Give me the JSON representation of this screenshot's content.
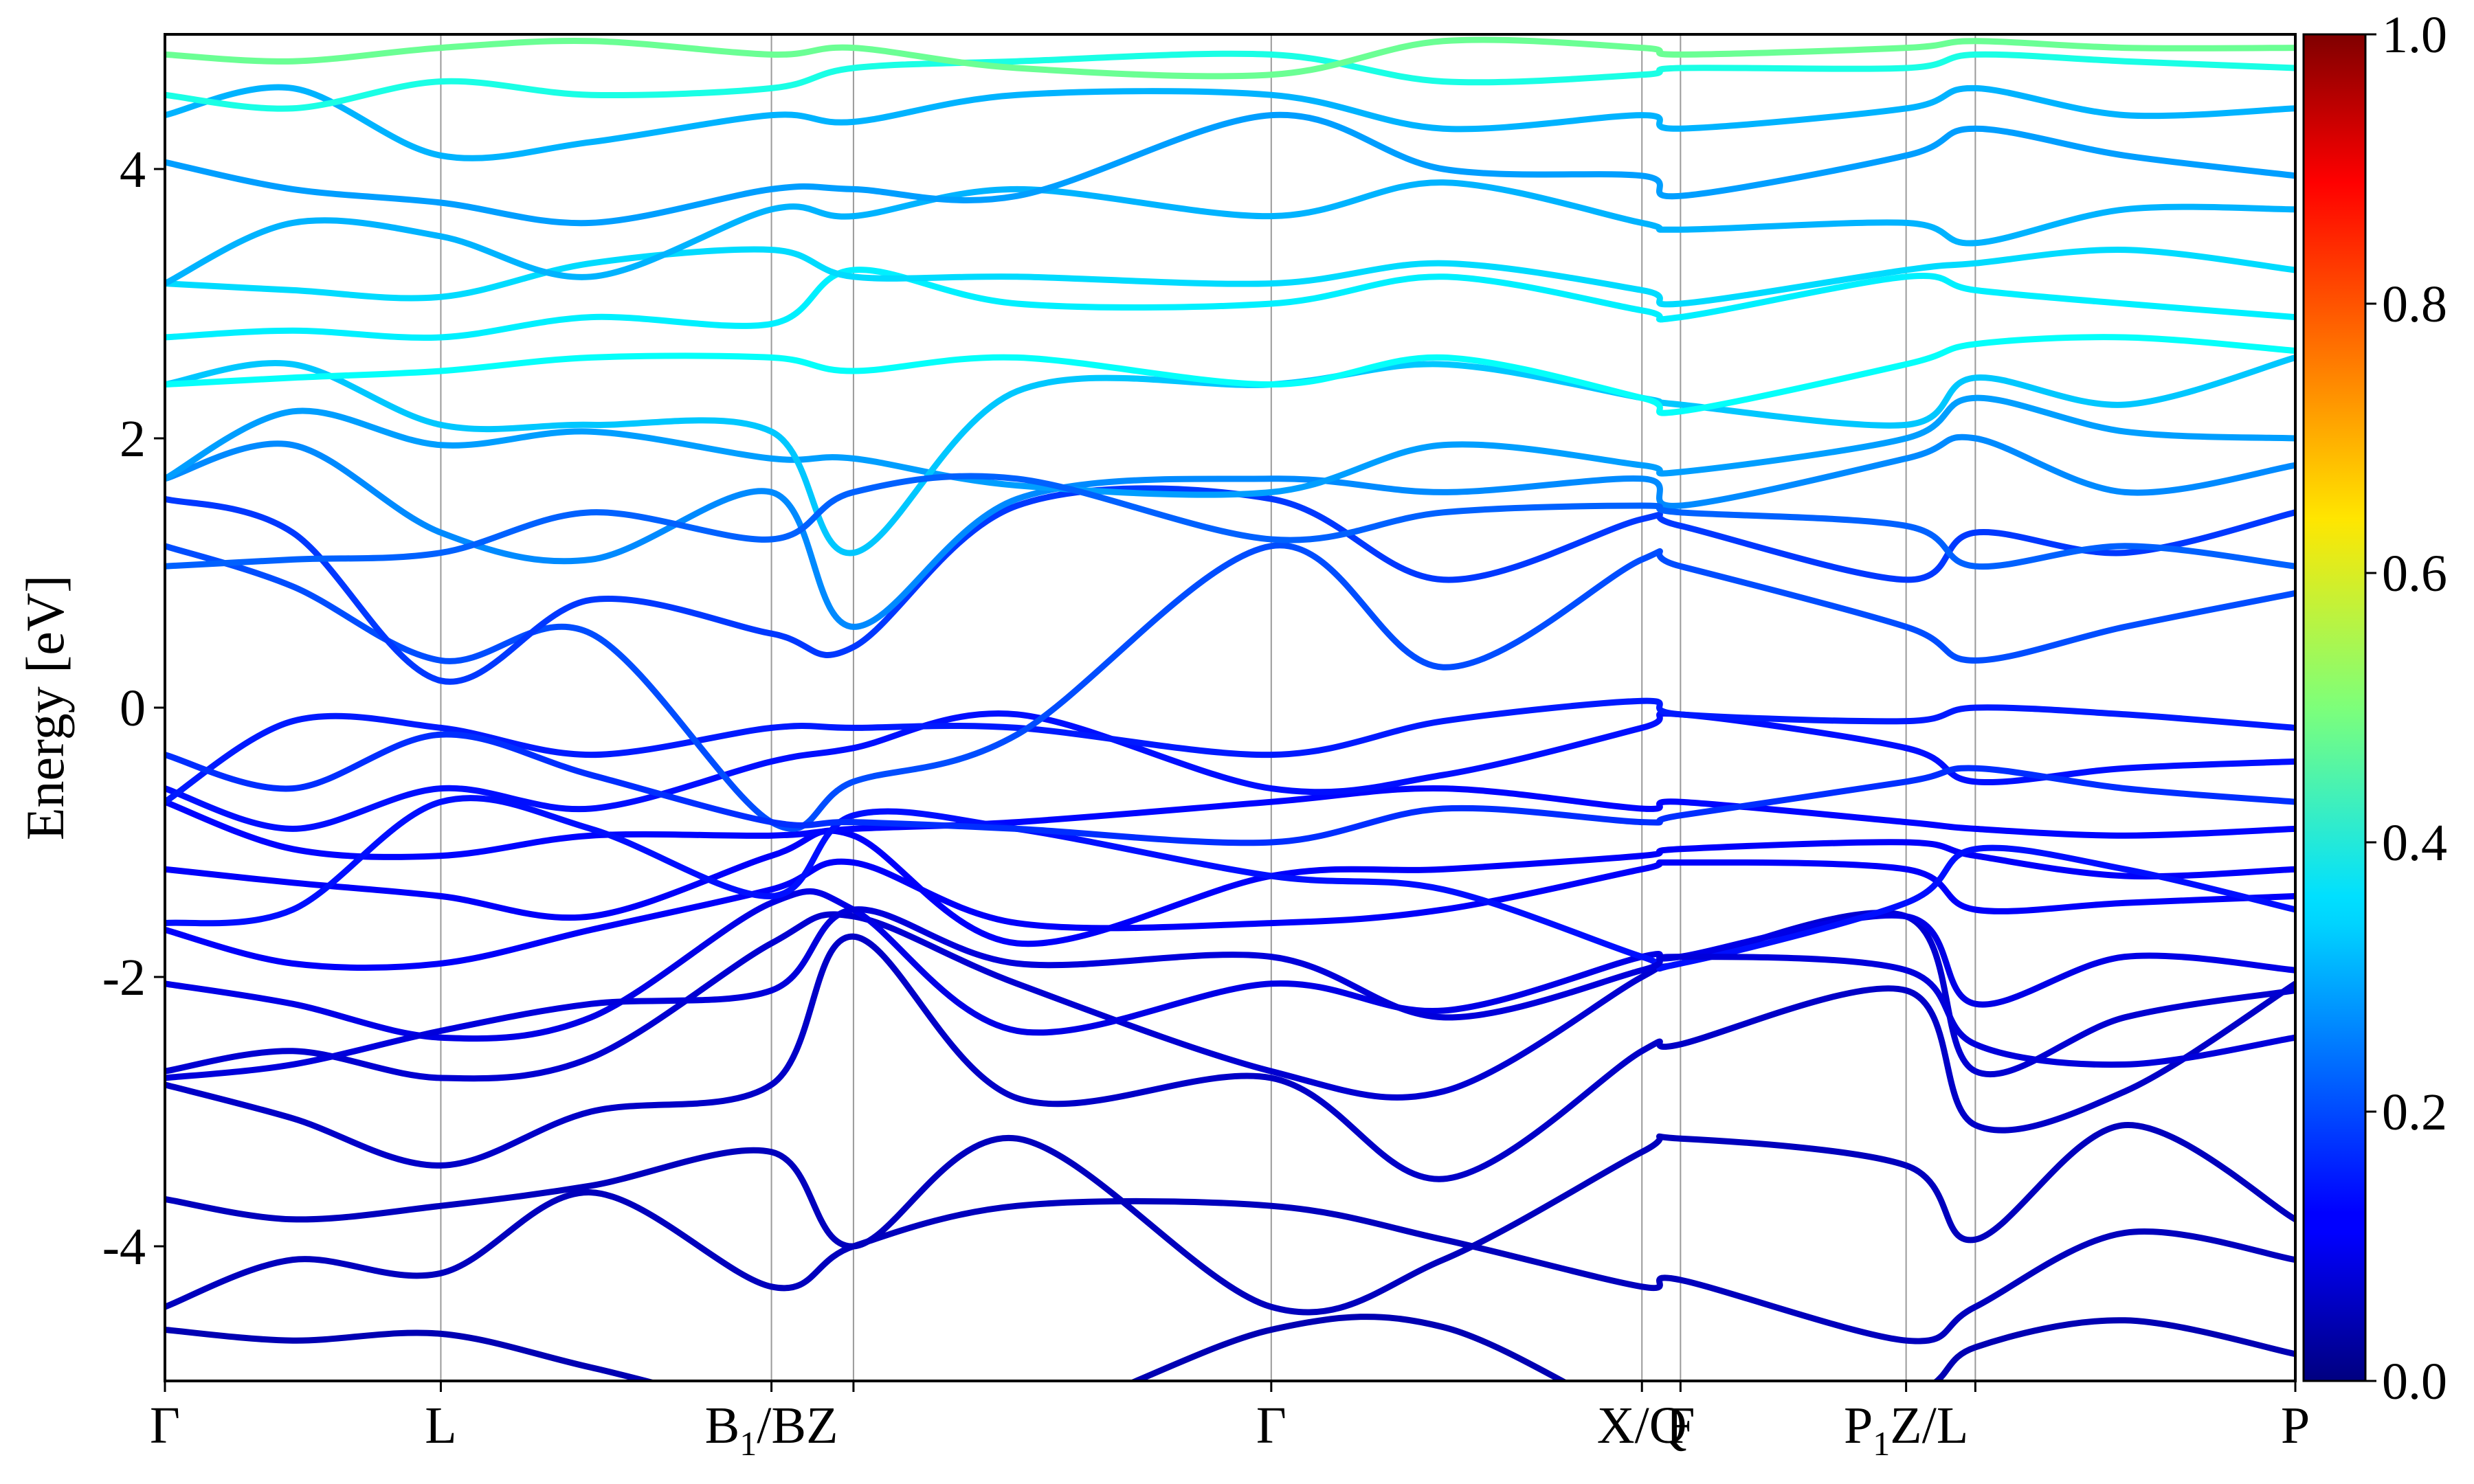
{
  "chart_data": {
    "type": "line",
    "title": "",
    "xlabel": "",
    "ylabel": "Energy [eV]",
    "ylim": [
      -5,
      5
    ],
    "yticks": [
      -4,
      -2,
      0,
      2,
      4
    ],
    "ytick_labels": [
      "-4",
      "-2",
      "0",
      "2",
      "4"
    ],
    "x_range": [
      0,
      1
    ],
    "k_path": [
      {
        "label": "Γ",
        "position": 0.0
      },
      {
        "label": "L",
        "position": 0.1295
      },
      {
        "label": "B1/BZ",
        "main": "B",
        "sub": "1",
        "rest": "/BZ",
        "position": 0.2847
      },
      {
        "label": "",
        "position": 0.3232
      },
      {
        "label": "Γ",
        "position": 0.5193
      },
      {
        "label": "X/Q",
        "main": "X/Q",
        "position": 0.6933
      },
      {
        "label": "F",
        "position": 0.7114
      },
      {
        "label": "P1Z/L",
        "main": "P",
        "sub": "1",
        "rest": "Z/L",
        "position": 0.8173
      },
      {
        "label": "",
        "position": 0.8498
      },
      {
        "label": "P",
        "position": 1.0
      }
    ],
    "colorbar": {
      "min": 0.0,
      "max": 1.0,
      "ticks": [
        0.0,
        0.2,
        0.4,
        0.6,
        0.8,
        1.0
      ],
      "tick_labels": [
        "0.0",
        "0.2",
        "0.4",
        "0.6",
        "0.8",
        "1.0"
      ],
      "colormap": "jet"
    },
    "series": [
      {
        "weight": 0.05,
        "x": [
          0,
          0.06,
          0.1295,
          0.2,
          0.2847,
          0.3232,
          0.4,
          0.5193,
          0.6,
          0.6933,
          0.7114,
          0.8173,
          0.8498,
          0.92,
          1.0
        ],
        "y": [
          -4.62,
          -4.7,
          -4.65,
          -4.9,
          -5.2,
          -5.05,
          -5.3,
          -4.62,
          -4.6,
          -5.3,
          -5.2,
          -5.1,
          -4.75,
          -4.55,
          -4.8
        ]
      },
      {
        "weight": 0.06,
        "x": [
          0,
          0.06,
          0.1295,
          0.2,
          0.2847,
          0.3232,
          0.4,
          0.5193,
          0.6,
          0.6933,
          0.7114,
          0.8173,
          0.8498,
          0.92,
          1.0
        ],
        "y": [
          -4.45,
          -4.1,
          -4.2,
          -3.6,
          -4.3,
          -4.0,
          -3.7,
          -3.7,
          -3.95,
          -4.3,
          -4.25,
          -4.7,
          -4.45,
          -3.9,
          -4.1
        ]
      },
      {
        "weight": 0.06,
        "x": [
          0,
          0.06,
          0.1295,
          0.2,
          0.2847,
          0.3232,
          0.4,
          0.5193,
          0.6,
          0.6933,
          0.7114,
          0.8173,
          0.8498,
          0.92,
          1.0
        ],
        "y": [
          -3.65,
          -3.8,
          -3.7,
          -3.55,
          -3.3,
          -4.0,
          -3.2,
          -4.45,
          -4.1,
          -3.3,
          -3.2,
          -3.4,
          -3.95,
          -3.1,
          -3.8
        ]
      },
      {
        "weight": 0.07,
        "x": [
          0,
          0.06,
          0.1295,
          0.2,
          0.2847,
          0.3232,
          0.4,
          0.5193,
          0.6,
          0.6933,
          0.7114,
          0.8173,
          0.8498,
          0.92,
          1.0
        ],
        "y": [
          -2.8,
          -3.05,
          -3.4,
          -3.0,
          -2.8,
          -1.7,
          -2.9,
          -2.75,
          -3.5,
          -2.55,
          -2.5,
          -2.1,
          -3.1,
          -2.85,
          -2.05
        ]
      },
      {
        "weight": 0.08,
        "x": [
          0,
          0.06,
          0.1295,
          0.2,
          0.2847,
          0.3232,
          0.4,
          0.5193,
          0.6,
          0.6933,
          0.7114,
          0.8173,
          0.8498,
          0.92,
          1.0
        ],
        "y": [
          -2.7,
          -2.55,
          -2.75,
          -2.6,
          -1.75,
          -1.55,
          -2.05,
          -2.7,
          -2.85,
          -2.0,
          -1.9,
          -1.55,
          -2.7,
          -2.3,
          -2.1
        ]
      },
      {
        "weight": 0.1,
        "x": [
          0,
          0.06,
          0.1295,
          0.2,
          0.2847,
          0.3232,
          0.4,
          0.5193,
          0.6,
          0.6933,
          0.7114,
          0.8173,
          0.8498,
          0.92,
          1.0
        ],
        "y": [
          -2.05,
          -2.2,
          -2.45,
          -2.3,
          -1.45,
          -1.5,
          -2.4,
          -2.05,
          -2.25,
          -1.85,
          -1.85,
          -1.55,
          -2.2,
          -1.85,
          -1.95
        ]
      },
      {
        "weight": 0.12,
        "x": [
          0,
          0.06,
          0.1295,
          0.2,
          0.2847,
          0.3232,
          0.4,
          0.5193,
          0.6,
          0.6933,
          0.7114,
          0.8173,
          0.8498,
          0.92,
          1.0
        ],
        "y": [
          -1.65,
          -1.9,
          -1.9,
          -1.65,
          -1.35,
          -1.15,
          -1.6,
          -1.6,
          -1.5,
          -1.2,
          -1.15,
          -1.2,
          -1.5,
          -1.45,
          -1.4
        ]
      },
      {
        "weight": 0.12,
        "x": [
          0,
          0.06,
          0.1295,
          0.2,
          0.2847,
          0.3232,
          0.4,
          0.5193,
          0.6,
          0.6933,
          0.7114,
          0.8173,
          0.8498,
          0.92,
          1.0
        ],
        "y": [
          -1.2,
          -1.3,
          -1.4,
          -1.55,
          -1.1,
          -0.95,
          -1.75,
          -1.25,
          -1.2,
          -1.1,
          -1.05,
          -1.0,
          -1.1,
          -1.25,
          -1.2
        ]
      },
      {
        "weight": 0.13,
        "x": [
          0,
          0.06,
          0.1295,
          0.2,
          0.2847,
          0.3232,
          0.4,
          0.5193,
          0.6,
          0.6933,
          0.7114,
          0.8173,
          0.8498,
          0.92,
          1.0
        ],
        "y": [
          -0.7,
          -1.05,
          -1.1,
          -0.95,
          -0.95,
          -0.9,
          -0.85,
          -0.7,
          -0.6,
          -0.75,
          -0.7,
          -0.85,
          -0.9,
          -0.95,
          -0.9
        ]
      },
      {
        "weight": 0.14,
        "x": [
          0,
          0.06,
          0.1295,
          0.2,
          0.2847,
          0.3232,
          0.4,
          0.5193,
          0.6,
          0.6933,
          0.7114,
          0.8173,
          0.8498,
          0.92,
          1.0
        ],
        "y": [
          -0.6,
          -0.9,
          -0.6,
          -0.75,
          -0.4,
          -0.3,
          -0.05,
          -0.6,
          -0.5,
          -0.15,
          -0.05,
          -0.3,
          -0.55,
          -0.45,
          -0.4
        ]
      },
      {
        "weight": 0.15,
        "x": [
          0,
          0.06,
          0.1295,
          0.2,
          0.2847,
          0.3232,
          0.4,
          0.5193,
          0.6,
          0.6933,
          0.7114,
          0.8173,
          0.8498,
          0.92,
          1.0
        ],
        "y": [
          -0.7,
          -0.1,
          -0.15,
          -0.35,
          -0.15,
          -0.15,
          -0.15,
          -0.35,
          -0.1,
          0.05,
          -0.05,
          -0.1,
          0.0,
          -0.05,
          -0.15
        ]
      },
      {
        "weight": 0.2,
        "x": [
          0,
          0.06,
          0.1295,
          0.2,
          0.2847,
          0.3232,
          0.4,
          0.5193,
          0.6,
          0.6933,
          0.7114,
          0.8173,
          0.8498,
          0.92,
          1.0
        ],
        "y": [
          1.2,
          0.9,
          0.35,
          0.55,
          -0.85,
          -0.55,
          -0.2,
          1.2,
          0.3,
          1.1,
          1.05,
          0.6,
          0.35,
          0.6,
          0.85
        ]
      },
      {
        "weight": 0.18,
        "x": [
          0,
          0.06,
          0.1295,
          0.2,
          0.2847,
          0.3232,
          0.4,
          0.5193,
          0.6,
          0.6933,
          0.7114,
          0.8173,
          0.8498,
          0.92,
          1.0
        ],
        "y": [
          1.55,
          1.3,
          0.2,
          0.8,
          0.55,
          0.45,
          1.5,
          1.55,
          0.95,
          1.4,
          1.35,
          0.95,
          1.3,
          1.15,
          1.45
        ]
      },
      {
        "weight": 0.26,
        "x": [
          0,
          0.06,
          0.1295,
          0.2,
          0.2847,
          0.3232,
          0.4,
          0.5193,
          0.6,
          0.6933,
          0.7114,
          0.8173,
          0.8498,
          0.92,
          1.0
        ],
        "y": [
          1.7,
          1.95,
          1.3,
          1.1,
          1.6,
          0.6,
          1.55,
          1.7,
          1.6,
          1.7,
          1.5,
          1.85,
          2.0,
          1.6,
          1.8
        ]
      },
      {
        "weight": 0.28,
        "x": [
          0,
          0.06,
          0.1295,
          0.2,
          0.2847,
          0.3232,
          0.4,
          0.5193,
          0.6,
          0.6933,
          0.7114,
          0.8173,
          0.8498,
          0.92,
          1.0
        ],
        "y": [
          1.7,
          2.2,
          1.95,
          2.05,
          1.85,
          1.85,
          1.65,
          1.6,
          1.95,
          1.8,
          1.75,
          2.0,
          2.3,
          2.05,
          2.0
        ]
      },
      {
        "weight": 0.32,
        "x": [
          0,
          0.06,
          0.1295,
          0.2,
          0.2847,
          0.3232,
          0.4,
          0.5193,
          0.6,
          0.6933,
          0.7114,
          0.8173,
          0.8498,
          0.92,
          1.0
        ],
        "y": [
          2.4,
          2.55,
          2.1,
          2.1,
          2.05,
          1.15,
          2.35,
          2.4,
          2.55,
          2.3,
          2.25,
          2.1,
          2.45,
          2.25,
          2.6
        ]
      },
      {
        "weight": 0.38,
        "x": [
          0,
          0.06,
          0.1295,
          0.2,
          0.2847,
          0.3232,
          0.4,
          0.5193,
          0.6,
          0.6933,
          0.7114,
          0.8173,
          0.8498,
          0.92,
          1.0
        ],
        "y": [
          2.4,
          2.45,
          2.5,
          2.6,
          2.6,
          2.5,
          2.6,
          2.4,
          2.6,
          2.3,
          2.2,
          2.55,
          2.7,
          2.75,
          2.65
        ]
      },
      {
        "weight": 0.36,
        "x": [
          0,
          0.06,
          0.1295,
          0.2,
          0.2847,
          0.3232,
          0.4,
          0.5193,
          0.6,
          0.6933,
          0.7114,
          0.8173,
          0.8498,
          0.92,
          1.0
        ],
        "y": [
          2.75,
          2.8,
          2.75,
          2.9,
          2.85,
          3.25,
          3.0,
          3.0,
          3.2,
          2.95,
          2.9,
          3.2,
          3.1,
          3.0,
          2.9
        ]
      },
      {
        "weight": 0.34,
        "x": [
          0,
          0.06,
          0.1295,
          0.2,
          0.2847,
          0.3232,
          0.4,
          0.5193,
          0.6,
          0.6933,
          0.7114,
          0.8173,
          0.8498,
          0.92,
          1.0
        ],
        "y": [
          3.15,
          3.1,
          3.05,
          3.3,
          3.4,
          3.2,
          3.2,
          3.15,
          3.3,
          3.1,
          3.0,
          3.25,
          3.3,
          3.4,
          3.25
        ]
      },
      {
        "weight": 0.3,
        "x": [
          0,
          0.06,
          0.1295,
          0.2,
          0.2847,
          0.3232,
          0.4,
          0.5193,
          0.6,
          0.6933,
          0.7114,
          0.8173,
          0.8498,
          0.92,
          1.0
        ],
        "y": [
          3.15,
          3.6,
          3.5,
          3.2,
          3.7,
          3.65,
          3.85,
          3.65,
          3.9,
          3.6,
          3.55,
          3.6,
          3.45,
          3.7,
          3.7
        ]
      },
      {
        "weight": 0.28,
        "x": [
          0,
          0.06,
          0.1295,
          0.2,
          0.2847,
          0.3232,
          0.4,
          0.5193,
          0.6,
          0.6933,
          0.7114,
          0.8173,
          0.8498,
          0.92,
          1.0
        ],
        "y": [
          4.05,
          3.85,
          3.75,
          3.6,
          3.85,
          3.85,
          3.8,
          4.4,
          4.0,
          3.95,
          3.8,
          4.1,
          4.3,
          4.1,
          3.95
        ]
      },
      {
        "weight": 0.3,
        "x": [
          0,
          0.06,
          0.1295,
          0.2,
          0.2847,
          0.3232,
          0.4,
          0.5193,
          0.6,
          0.6933,
          0.7114,
          0.8173,
          0.8498,
          0.92,
          1.0
        ],
        "y": [
          4.4,
          4.6,
          4.1,
          4.2,
          4.4,
          4.35,
          4.55,
          4.55,
          4.3,
          4.4,
          4.3,
          4.45,
          4.6,
          4.4,
          4.45
        ]
      },
      {
        "weight": 0.4,
        "x": [
          0,
          0.06,
          0.1295,
          0.2,
          0.2847,
          0.3232,
          0.4,
          0.5193,
          0.6,
          0.6933,
          0.7114,
          0.8173,
          0.8498,
          0.92,
          1.0
        ],
        "y": [
          4.55,
          4.45,
          4.65,
          4.55,
          4.6,
          4.75,
          4.8,
          4.85,
          4.65,
          4.7,
          4.75,
          4.75,
          4.85,
          4.8,
          4.75
        ]
      },
      {
        "weight": 0.48,
        "x": [
          0,
          0.06,
          0.1295,
          0.2,
          0.2847,
          0.3232,
          0.4,
          0.5193,
          0.6,
          0.6933,
          0.7114,
          0.8173,
          0.8498,
          0.92,
          1.0
        ],
        "y": [
          4.85,
          4.8,
          4.9,
          4.95,
          4.85,
          4.9,
          4.75,
          4.7,
          4.95,
          4.9,
          4.85,
          4.9,
          4.95,
          4.9,
          4.9
        ]
      },
      {
        "weight": 0.14,
        "x": [
          0,
          0.06,
          0.1295,
          0.2,
          0.2847,
          0.3232,
          0.4,
          0.5193,
          0.6,
          0.6933,
          0.7114,
          0.8173,
          0.8498,
          0.92,
          1.0
        ],
        "y": [
          -1.6,
          -1.5,
          -0.7,
          -0.9,
          -1.4,
          -0.8,
          -0.9,
          -1.25,
          -1.35,
          -1.85,
          -1.9,
          -1.45,
          -1.05,
          -1.2,
          -1.5
        ]
      },
      {
        "weight": 0.17,
        "x": [
          0,
          0.06,
          0.1295,
          0.2,
          0.2847,
          0.3232,
          0.4,
          0.5193,
          0.6,
          0.6933,
          0.7114,
          0.8173,
          0.8498,
          0.92,
          1.0
        ],
        "y": [
          -0.35,
          -0.6,
          -0.2,
          -0.5,
          -0.85,
          -0.85,
          -0.9,
          -1.0,
          -0.75,
          -0.85,
          -0.8,
          -0.55,
          -0.45,
          -0.6,
          -0.7
        ]
      },
      {
        "weight": 0.09,
        "x": [
          0,
          0.06,
          0.1295,
          0.2,
          0.2847,
          0.3232,
          0.4,
          0.5193,
          0.6,
          0.6933,
          0.7114,
          0.8173,
          0.8498,
          0.92,
          1.0
        ],
        "y": [
          -2.75,
          -2.65,
          -2.4,
          -2.2,
          -2.1,
          -1.5,
          -1.9,
          -1.85,
          -2.3,
          -1.95,
          -1.85,
          -1.95,
          -2.5,
          -2.65,
          -2.45
        ]
      },
      {
        "weight": 0.22,
        "x": [
          0,
          0.06,
          0.1295,
          0.2,
          0.2847,
          0.3232,
          0.4,
          0.5193,
          0.6,
          0.6933,
          0.7114,
          0.8173,
          0.8498,
          0.92,
          1.0
        ],
        "y": [
          1.05,
          1.1,
          1.15,
          1.45,
          1.25,
          1.6,
          1.7,
          1.25,
          1.45,
          1.5,
          1.45,
          1.35,
          1.05,
          1.2,
          1.05
        ]
      }
    ]
  }
}
